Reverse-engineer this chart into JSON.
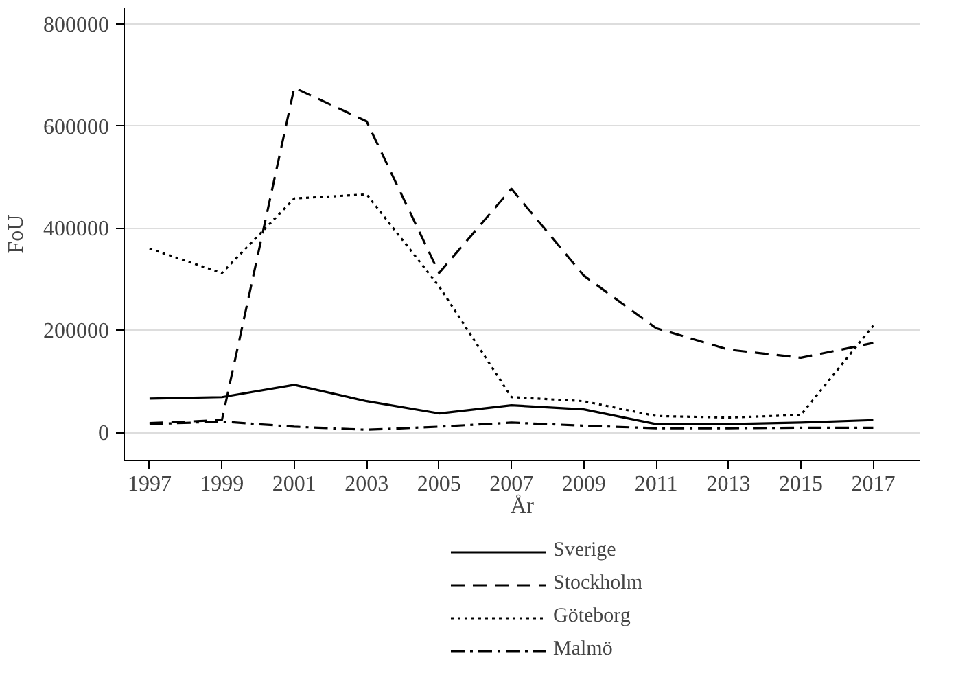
{
  "chart_data": {
    "type": "line",
    "xlabel": "År",
    "ylabel": "FoU",
    "x": [
      1997,
      1999,
      2001,
      2003,
      2005,
      2007,
      2009,
      2011,
      2013,
      2015,
      2017
    ],
    "xlim": [
      1996.3,
      2018.3
    ],
    "xticks": [
      1997,
      1999,
      2001,
      2003,
      2005,
      2007,
      2009,
      2011,
      2013,
      2015,
      2017
    ],
    "ylim": [
      -55000,
      832000
    ],
    "yticks": [
      0,
      200000,
      400000,
      600000,
      800000
    ],
    "grid": "y",
    "legend": "bottom",
    "marker": "none",
    "series": [
      {
        "name": "Sverige",
        "color": "#000000",
        "line_style": "solid",
        "values": [
          66000,
          69000,
          93000,
          61000,
          37000,
          53000,
          45000,
          16000,
          16000,
          19000,
          24000
        ]
      },
      {
        "name": "Stockholm",
        "color": "#000000",
        "line_style": "dashed",
        "values": [
          18000,
          24000,
          675000,
          609000,
          312000,
          477000,
          307000,
          204000,
          162000,
          146000,
          175000
        ]
      },
      {
        "name": "Göteborg",
        "color": "#000000",
        "line_style": "dotted",
        "values": [
          360000,
          312000,
          458000,
          466000,
          286000,
          69000,
          61000,
          32000,
          29000,
          34000,
          209000
        ]
      },
      {
        "name": "Malmö",
        "color": "#000000",
        "line_style": "dashdot",
        "values": [
          16000,
          21000,
          11000,
          5000,
          11000,
          19000,
          13000,
          8000,
          8000,
          9000,
          9000
        ]
      }
    ]
  }
}
